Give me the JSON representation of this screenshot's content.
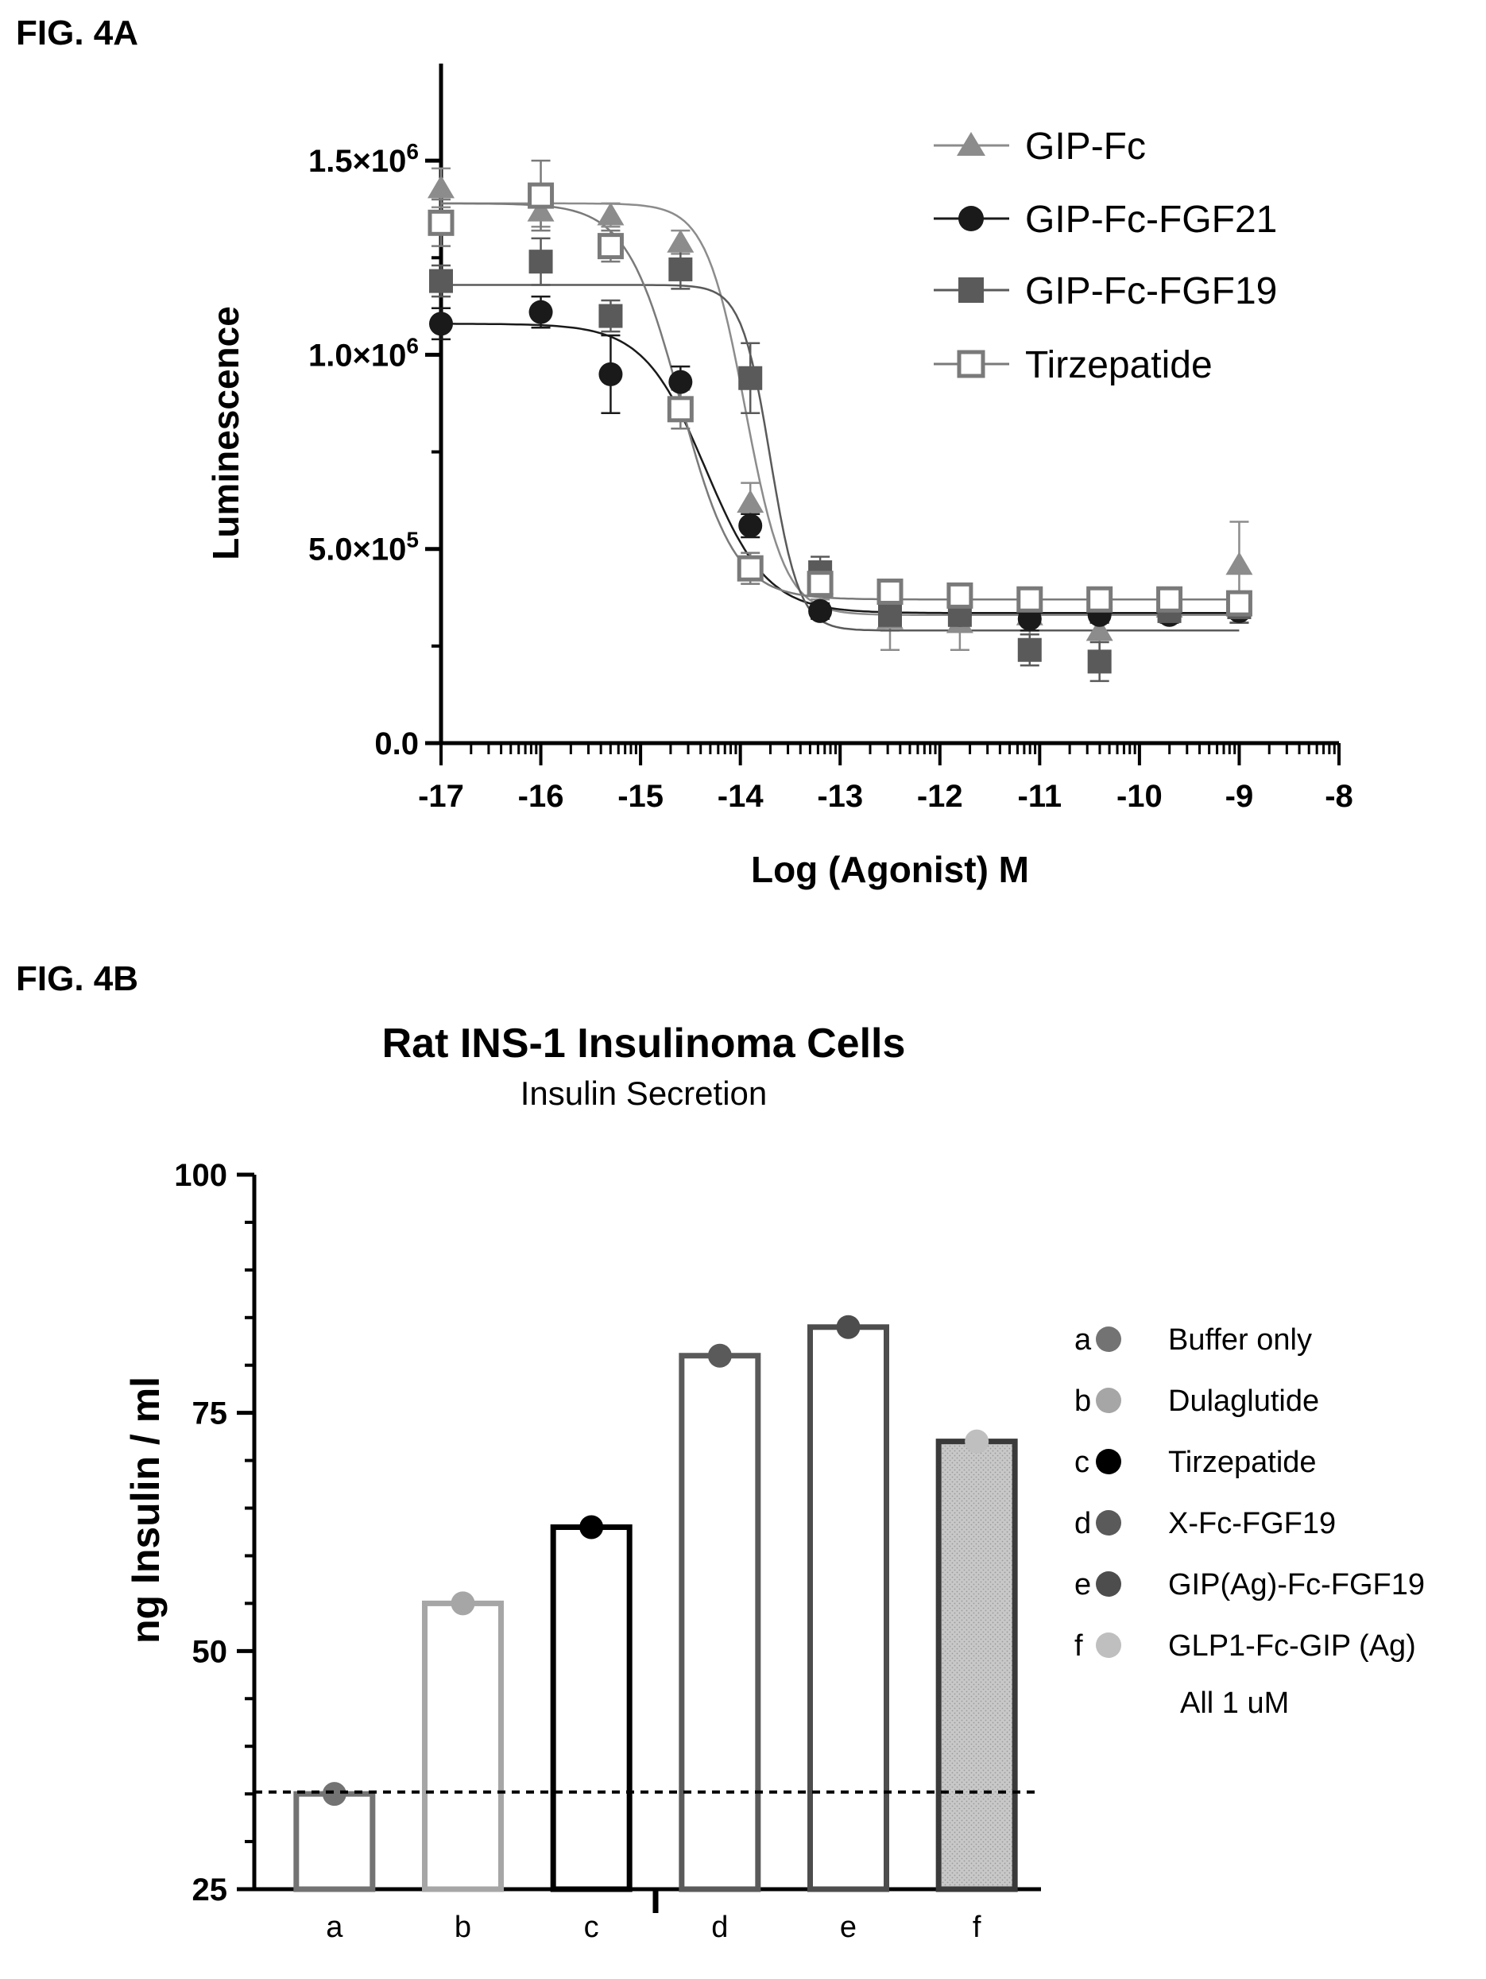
{
  "chart_data": [
    {
      "figure_label": "FIG. 4A",
      "type": "scatter",
      "title": "",
      "xlabel": "Log (Agonist) M",
      "ylabel": "Luminescence",
      "xlim": [
        -17,
        -8
      ],
      "ylim": [
        0,
        1750000
      ],
      "x_tick_labels": [
        "-17",
        "-16",
        "-15",
        "-14",
        "-13",
        "-12",
        "-11",
        "-10",
        "-9",
        "-8"
      ],
      "y_ticks": [
        {
          "value": 0,
          "label": "0.0",
          "exp": ""
        },
        {
          "value": 500000,
          "label": "5.0×10",
          "exp": "5"
        },
        {
          "value": 1000000,
          "label": "1.0×10",
          "exp": "6"
        },
        {
          "value": 1500000,
          "label": "1.5×10",
          "exp": "6"
        }
      ],
      "grid": false,
      "legend_position": "top-right",
      "series": [
        {
          "name": "GIP-Fc",
          "marker": "triangle",
          "color": "#8c8c8c",
          "x": [
            -17,
            -16,
            -15.3,
            -14.6,
            -13.9,
            -13.2,
            -12.5,
            -11.8,
            -11.1,
            -10.4,
            -9.7,
            -9
          ],
          "y": [
            1430000,
            1370000,
            1360000,
            1290000,
            620000,
            410000,
            320000,
            310000,
            330000,
            290000,
            350000,
            460000
          ],
          "err": [
            50000,
            40000,
            30000,
            30000,
            50000,
            40000,
            80000,
            70000,
            50000,
            60000,
            40000,
            110000
          ],
          "fit": {
            "top": 1390000,
            "bottom": 330000,
            "logEC50": -13.95,
            "hill": 2.2
          }
        },
        {
          "name": "GIP-Fc-FGF21",
          "marker": "circle",
          "color": "#1a1a1a",
          "x": [
            -17,
            -16,
            -15.3,
            -14.6,
            -13.9,
            -13.2,
            -12.5,
            -11.8,
            -11.1,
            -10.4,
            -9.7,
            -9
          ],
          "y": [
            1080000,
            1110000,
            950000,
            930000,
            560000,
            340000,
            340000,
            330000,
            320000,
            330000,
            330000,
            340000
          ],
          "err": [
            40000,
            40000,
            100000,
            40000,
            30000,
            20000,
            30000,
            20000,
            30000,
            20000,
            20000,
            30000
          ],
          "fit": {
            "top": 1080000,
            "bottom": 335000,
            "logEC50": -14.35,
            "hill": 1.4
          }
        },
        {
          "name": "GIP-Fc-FGF19",
          "marker": "square",
          "color": "#5a5a5a",
          "x": [
            -17,
            -16,
            -15.3,
            -14.6,
            -13.9,
            -13.2,
            -12.5,
            -11.8,
            -11.1,
            -10.4,
            -9.7,
            -9
          ],
          "y": [
            1190000,
            1240000,
            1100000,
            1220000,
            940000,
            440000,
            330000,
            330000,
            240000,
            210000,
            340000,
            350000
          ],
          "err": [
            40000,
            60000,
            40000,
            50000,
            90000,
            40000,
            40000,
            40000,
            40000,
            50000,
            30000,
            40000
          ],
          "fit": {
            "top": 1180000,
            "bottom": 290000,
            "logEC50": -13.7,
            "hill": 3.0
          }
        },
        {
          "name": "Tirzepatide",
          "marker": "open-square",
          "color": "#7a7a7a",
          "x": [
            -17,
            -16,
            -15.3,
            -14.6,
            -13.9,
            -13.2,
            -12.5,
            -11.8,
            -11.1,
            -10.4,
            -9.7,
            -9
          ],
          "y": [
            1340000,
            1410000,
            1280000,
            860000,
            450000,
            410000,
            390000,
            380000,
            370000,
            370000,
            370000,
            360000
          ],
          "err": [
            60000,
            90000,
            40000,
            50000,
            40000,
            30000,
            30000,
            30000,
            20000,
            30000,
            20000,
            20000
          ],
          "fit": {
            "top": 1390000,
            "bottom": 370000,
            "logEC50": -14.6,
            "hill": 1.6
          }
        }
      ]
    },
    {
      "figure_label": "FIG. 4B",
      "type": "bar",
      "title": "Rat INS-1 Insulinoma Cells",
      "subtitle": "Insulin Secretion",
      "xlabel": "",
      "ylabel": "ng Insulin / ml",
      "ylim": [
        25,
        100
      ],
      "y_tick_labels": [
        "25",
        "50",
        "75",
        "100"
      ],
      "grid": false,
      "legend_position": "right",
      "categories": [
        "a",
        "b",
        "c",
        "d",
        "e",
        "f"
      ],
      "values": [
        35,
        55,
        63,
        81,
        84,
        72
      ],
      "baseline": 35.2,
      "colors": [
        "#737373",
        "#a6a6a6",
        "#000000",
        "#5a5a5a",
        "#4d4d4d",
        "#bfbfbf"
      ],
      "filled": [
        false,
        false,
        false,
        false,
        false,
        true
      ],
      "legend": [
        {
          "letter": "a",
          "label": "Buffer only"
        },
        {
          "letter": "b",
          "label": "Dulaglutide"
        },
        {
          "letter": "c",
          "label": "Tirzepatide"
        },
        {
          "letter": "d",
          "label": "X-Fc-FGF19"
        },
        {
          "letter": "e",
          "label": "GIP(Ag)-Fc-FGF19"
        },
        {
          "letter": "f",
          "label": "GLP1-Fc-GIP (Ag)"
        }
      ],
      "note": "All 1 uM"
    }
  ]
}
